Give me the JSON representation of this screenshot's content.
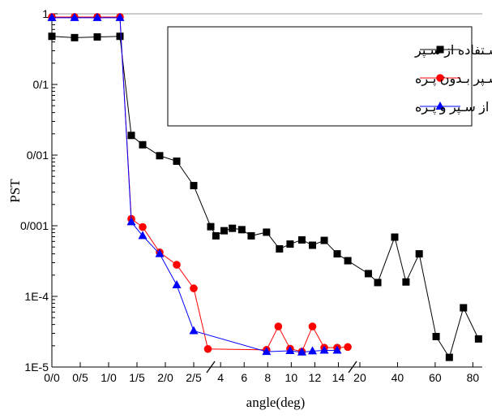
{
  "chart_data": {
    "type": "line",
    "xlabel": "angle(deg)",
    "ylabel": "PST",
    "yscale": "log",
    "ylim": [
      1e-05,
      1
    ],
    "y_tick_labels": [
      {
        "value": 1,
        "label": "1"
      },
      {
        "value": 0.1,
        "label": "0/1"
      },
      {
        "value": 0.01,
        "label": "0/01"
      },
      {
        "value": 0.001,
        "label": "0/001"
      },
      {
        "value": 0.0001,
        "label": "1E-4"
      },
      {
        "value": 1e-05,
        "label": "1E-5"
      }
    ],
    "x_axis": "broken",
    "x_segments": [
      {
        "range": [
          0,
          2.8
        ],
        "ticks": [
          {
            "value": 0,
            "label": "0/0"
          },
          {
            "value": 0.5,
            "label": "0/5"
          },
          {
            "value": 1.0,
            "label": "1/0"
          },
          {
            "value": 1.5,
            "label": "1/5"
          },
          {
            "value": 2.0,
            "label": "2/0"
          },
          {
            "value": 2.5,
            "label": "2/5"
          }
        ]
      },
      {
        "range": [
          3.3,
          15.0
        ],
        "ticks": [
          {
            "value": 4,
            "label": "4"
          },
          {
            "value": 6,
            "label": "6"
          },
          {
            "value": 8,
            "label": "8"
          },
          {
            "value": 10,
            "label": "10"
          },
          {
            "value": 12,
            "label": "12"
          },
          {
            "value": 14,
            "label": "14"
          }
        ]
      },
      {
        "range": [
          17.0,
          85.0
        ],
        "ticks": [
          {
            "value": 20,
            "label": "20"
          },
          {
            "value": 40,
            "label": "40"
          },
          {
            "value": 60,
            "label": "60"
          },
          {
            "value": 80,
            "label": "80"
          }
        ]
      }
    ],
    "legend_position": "top-right",
    "grid": false,
    "series": [
      {
        "name": "بـدون اسـتفاده از سـپر",
        "color": "#000000",
        "marker": "square",
        "points": [
          {
            "x": 0,
            "y": 0.48
          },
          {
            "x": 0.4,
            "y": 0.46
          },
          {
            "x": 0.8,
            "y": 0.47
          },
          {
            "x": 1.2,
            "y": 0.48
          },
          {
            "x": 1.4,
            "y": 0.019
          },
          {
            "x": 1.6,
            "y": 0.014
          },
          {
            "x": 1.9,
            "y": 0.0098
          },
          {
            "x": 2.2,
            "y": 0.0082
          },
          {
            "x": 2.5,
            "y": 0.0037
          },
          {
            "x": 2.8,
            "y": 0.00097
          },
          {
            "x": 3.6,
            "y": 0.00072
          },
          {
            "x": 4.3,
            "y": 0.00085
          },
          {
            "x": 5.0,
            "y": 0.00092
          },
          {
            "x": 5.8,
            "y": 0.00088
          },
          {
            "x": 6.6,
            "y": 0.00072
          },
          {
            "x": 7.9,
            "y": 0.00081
          },
          {
            "x": 9.0,
            "y": 0.00047
          },
          {
            "x": 9.9,
            "y": 0.00055
          },
          {
            "x": 10.9,
            "y": 0.00063
          },
          {
            "x": 11.8,
            "y": 0.00053
          },
          {
            "x": 12.8,
            "y": 0.00062
          },
          {
            "x": 13.9,
            "y": 0.0004
          },
          {
            "x": 14.8,
            "y": 0.00032
          },
          {
            "x": 24.5,
            "y": 0.00021
          },
          {
            "x": 29.5,
            "y": 0.000157
          },
          {
            "x": 38.5,
            "y": 0.00069
          },
          {
            "x": 44.5,
            "y": 0.00016
          },
          {
            "x": 51.5,
            "y": 0.0004
          },
          {
            "x": 60.5,
            "y": 2.7e-05
          },
          {
            "x": 67.5,
            "y": 1.37e-05
          },
          {
            "x": 75.0,
            "y": 6.9e-05
          },
          {
            "x": 83.0,
            "y": 2.5e-05
          }
        ]
      },
      {
        "name": "بـا اسـتفاده از سـپر بـدون پـره",
        "color": "#ff0000",
        "marker": "circle",
        "points": [
          {
            "x": 0,
            "y": 0.9
          },
          {
            "x": 0.4,
            "y": 0.9
          },
          {
            "x": 0.8,
            "y": 0.9
          },
          {
            "x": 1.2,
            "y": 0.9
          },
          {
            "x": 1.4,
            "y": 0.00125
          },
          {
            "x": 1.6,
            "y": 0.00096
          },
          {
            "x": 1.9,
            "y": 0.00042
          },
          {
            "x": 2.2,
            "y": 0.00028
          },
          {
            "x": 2.5,
            "y": 0.00013
          },
          {
            "x": 2.75,
            "y": 1.8e-05
          },
          {
            "x": 7.9,
            "y": 1.75e-05
          },
          {
            "x": 8.9,
            "y": 3.75e-05
          },
          {
            "x": 9.9,
            "y": 1.82e-05
          },
          {
            "x": 10.9,
            "y": 1.65e-05
          },
          {
            "x": 11.8,
            "y": 3.75e-05
          },
          {
            "x": 12.8,
            "y": 1.88e-05
          },
          {
            "x": 13.9,
            "y": 1.88e-05
          },
          {
            "x": 14.8,
            "y": 1.92e-05
          }
        ]
      },
      {
        "name": "بـا اسـتفاده از سـپر و پـره",
        "color": "#0000ff",
        "marker": "triangle",
        "points": [
          {
            "x": 0,
            "y": 0.88
          },
          {
            "x": 0.4,
            "y": 0.88
          },
          {
            "x": 0.8,
            "y": 0.88
          },
          {
            "x": 1.2,
            "y": 0.88
          },
          {
            "x": 1.4,
            "y": 0.00113
          },
          {
            "x": 1.6,
            "y": 0.00072
          },
          {
            "x": 1.9,
            "y": 0.0004
          },
          {
            "x": 2.2,
            "y": 0.000145
          },
          {
            "x": 2.5,
            "y": 3.25e-05
          },
          {
            "x": 7.9,
            "y": 1.65e-05
          },
          {
            "x": 9.9,
            "y": 1.7e-05
          },
          {
            "x": 10.9,
            "y": 1.62e-05
          },
          {
            "x": 11.8,
            "y": 1.68e-05
          },
          {
            "x": 12.8,
            "y": 1.72e-05
          },
          {
            "x": 13.9,
            "y": 1.72e-05
          }
        ]
      }
    ]
  }
}
